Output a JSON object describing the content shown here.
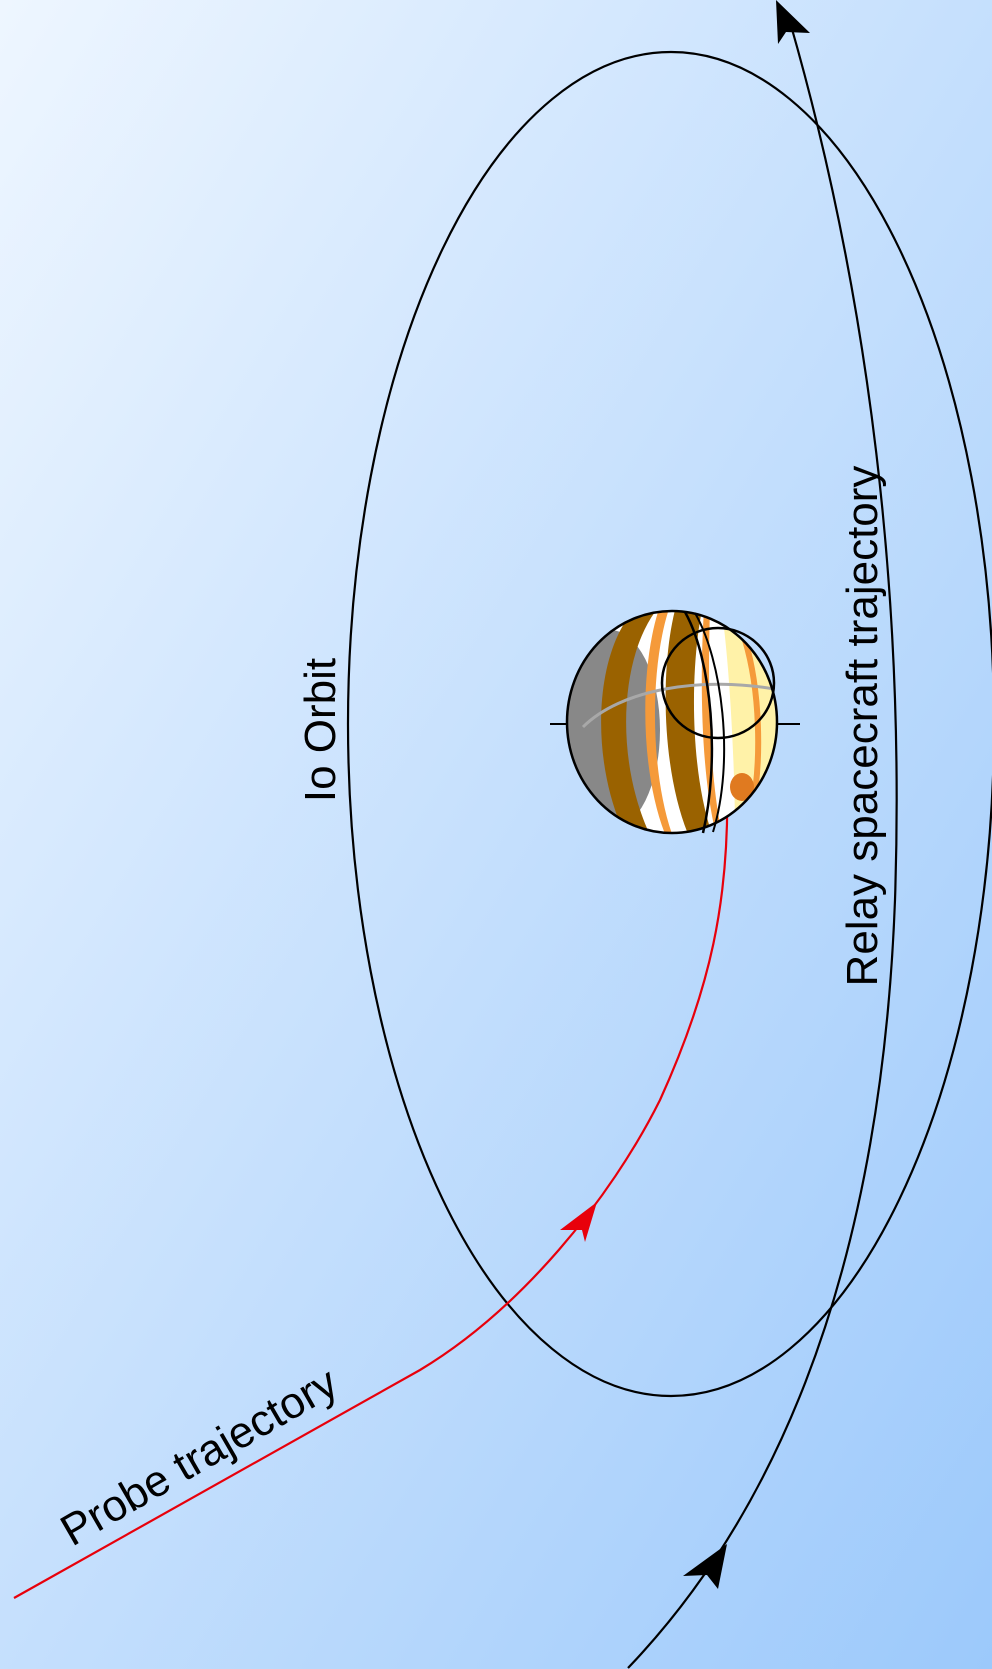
{
  "labels": {
    "io_orbit": "Io Orbit",
    "relay_trajectory": "Relay spacecraft trajectory",
    "probe_trajectory": "Probe trajectory"
  },
  "colors": {
    "background_light": "#eef6ff",
    "background_dark": "#9cc9fb",
    "orbit_line": "#000000",
    "probe_line": "#e8000b",
    "planet_band_brown": "#9a6200",
    "planet_band_orange": "#f59a3a",
    "planet_band_cream": "#fff2a8",
    "planet_shadow": "#888888",
    "planet_light": "#ffffff"
  }
}
